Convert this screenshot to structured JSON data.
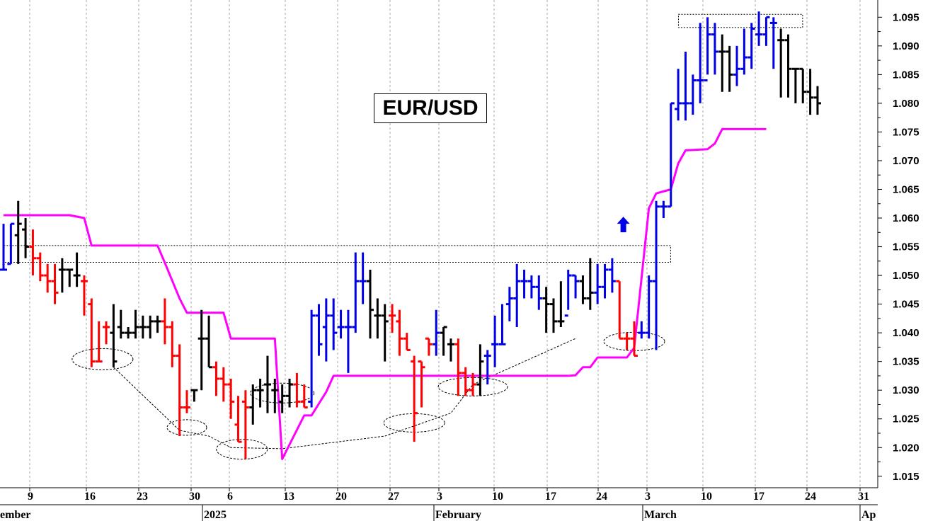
{
  "chart_data": {
    "type": "bar",
    "subtype": "ohlc",
    "title": "EUR/USD",
    "ylim": [
      1.013,
      1.098
    ],
    "yticks": [
      "1.095",
      "1.090",
      "1.085",
      "1.080",
      "1.075",
      "1.070",
      "1.065",
      "1.060",
      "1.055",
      "1.050",
      "1.045",
      "1.040",
      "1.035",
      "1.030",
      "1.025",
      "1.020",
      "1.015"
    ],
    "y_axis_side": "right",
    "grid": "vertical dotted",
    "x_day_labels": [
      "9",
      "16",
      "23",
      "30",
      "6",
      "13",
      "20",
      "27",
      "3",
      "10",
      "17",
      "24",
      "3",
      "10",
      "17",
      "24",
      "31"
    ],
    "x_month_labels": [
      "ember",
      "2025",
      "February",
      "March",
      "Ap"
    ],
    "colors": {
      "up": "#0000e6",
      "down": "#ff0000",
      "neutral": "#000000",
      "trend_line": "#ff00ff",
      "annotation": "#000000"
    },
    "series": [
      {
        "kind": "ohlc",
        "fields": [
          "open",
          "high",
          "low",
          "close",
          "color"
        ],
        "bars": [
          [
            1.051,
            1.059,
            1.051,
            1.051,
            "up"
          ],
          [
            1.052,
            1.059,
            1.052,
            1.059,
            "up"
          ],
          [
            1.057,
            1.063,
            1.052,
            1.059,
            "neutral"
          ],
          [
            1.058,
            1.06,
            1.053,
            1.055,
            "neutral"
          ],
          [
            1.055,
            1.058,
            1.05,
            1.053,
            "down"
          ],
          [
            1.053,
            1.054,
            1.049,
            1.05,
            "down"
          ],
          [
            1.05,
            1.052,
            1.047,
            1.049,
            "down"
          ],
          [
            1.049,
            1.052,
            1.045,
            1.047,
            "down"
          ],
          [
            1.051,
            1.053,
            1.047,
            1.051,
            "neutral"
          ],
          [
            1.051,
            1.051,
            1.048,
            1.051,
            "neutral"
          ],
          [
            1.05,
            1.054,
            1.048,
            1.05,
            "neutral"
          ],
          [
            1.049,
            1.05,
            1.043,
            1.049,
            "down"
          ],
          [
            1.045,
            1.046,
            1.034,
            1.035,
            "down"
          ],
          [
            1.035,
            1.042,
            1.035,
            1.035,
            "down"
          ],
          [
            1.041,
            1.042,
            1.038,
            1.041,
            "down"
          ],
          [
            1.04,
            1.045,
            1.034,
            1.035,
            "neutral"
          ],
          [
            1.041,
            1.044,
            1.039,
            1.04,
            "neutral"
          ],
          [
            1.04,
            1.041,
            1.039,
            1.04,
            "neutral"
          ],
          [
            1.04,
            1.044,
            1.039,
            1.041,
            "neutral"
          ],
          [
            1.041,
            1.043,
            1.039,
            1.041,
            "neutral"
          ],
          [
            1.041,
            1.043,
            1.039,
            1.042,
            "neutral"
          ],
          [
            1.042,
            1.043,
            1.04,
            1.042,
            "neutral"
          ],
          [
            1.042,
            1.046,
            1.038,
            1.041,
            "down"
          ],
          [
            1.041,
            1.042,
            1.034,
            1.036,
            "down"
          ],
          [
            1.036,
            1.038,
            1.022,
            1.027,
            "down"
          ],
          [
            1.027,
            1.03,
            1.026,
            1.027,
            "down"
          ],
          [
            1.03,
            1.03,
            1.028,
            1.03,
            "neutral"
          ],
          [
            1.039,
            1.044,
            1.03,
            1.039,
            "neutral"
          ],
          [
            1.039,
            1.043,
            1.034,
            1.034,
            "neutral"
          ],
          [
            1.034,
            1.035,
            1.029,
            1.032,
            "down"
          ],
          [
            1.032,
            1.034,
            1.028,
            1.031,
            "down"
          ],
          [
            1.031,
            1.032,
            1.025,
            1.028,
            "down"
          ],
          [
            1.024,
            1.029,
            1.021,
            1.021,
            "down"
          ],
          [
            1.028,
            1.03,
            1.018,
            1.027,
            "down"
          ],
          [
            1.027,
            1.031,
            1.024,
            1.03,
            "neutral"
          ],
          [
            1.03,
            1.032,
            1.027,
            1.03,
            "neutral"
          ],
          [
            1.031,
            1.036,
            1.026,
            1.031,
            "neutral"
          ],
          [
            1.03,
            1.032,
            1.026,
            1.03,
            "neutral"
          ],
          [
            1.028,
            1.031,
            1.026,
            1.029,
            "neutral"
          ],
          [
            1.029,
            1.032,
            1.027,
            1.031,
            "neutral"
          ],
          [
            1.031,
            1.033,
            1.027,
            1.028,
            "down"
          ],
          [
            1.028,
            1.031,
            1.027,
            1.027,
            "down"
          ],
          [
            1.028,
            1.044,
            1.027,
            1.043,
            "up"
          ],
          [
            1.043,
            1.045,
            1.036,
            1.038,
            "up"
          ],
          [
            1.041,
            1.046,
            1.035,
            1.043,
            "up"
          ],
          [
            1.043,
            1.046,
            1.037,
            1.04,
            "up"
          ],
          [
            1.041,
            1.044,
            1.039,
            1.041,
            "up"
          ],
          [
            1.041,
            1.044,
            1.033,
            1.041,
            "up"
          ],
          [
            1.041,
            1.054,
            1.04,
            1.049,
            "up"
          ],
          [
            1.049,
            1.054,
            1.045,
            1.049,
            "up"
          ],
          [
            1.049,
            1.051,
            1.039,
            1.044,
            "neutral"
          ],
          [
            1.043,
            1.046,
            1.039,
            1.043,
            "neutral"
          ],
          [
            1.043,
            1.045,
            1.035,
            1.042,
            "neutral"
          ],
          [
            1.043,
            1.045,
            1.04,
            1.043,
            "down"
          ],
          [
            1.042,
            1.044,
            1.036,
            1.039,
            "down"
          ],
          [
            1.039,
            1.04,
            1.037,
            1.037,
            "down"
          ],
          [
            1.035,
            1.036,
            1.021,
            1.026,
            "down"
          ],
          [
            1.035,
            1.035,
            1.027,
            1.034,
            "down"
          ],
          [
            1.039,
            1.039,
            1.036,
            1.038,
            "down"
          ],
          [
            1.038,
            1.044,
            1.036,
            1.04,
            "up"
          ],
          [
            1.04,
            1.041,
            1.036,
            1.041,
            "neutral"
          ],
          [
            1.038,
            1.039,
            1.035,
            1.038,
            "neutral"
          ],
          [
            1.038,
            1.039,
            1.029,
            1.033,
            "down"
          ],
          [
            1.033,
            1.034,
            1.029,
            1.03,
            "down"
          ],
          [
            1.03,
            1.033,
            1.029,
            1.031,
            "down"
          ],
          [
            1.031,
            1.038,
            1.029,
            1.035,
            "neutral"
          ],
          [
            1.036,
            1.037,
            1.031,
            1.036,
            "up"
          ],
          [
            1.038,
            1.043,
            1.034,
            1.038,
            "up"
          ],
          [
            1.038,
            1.045,
            1.038,
            1.038,
            "up"
          ],
          [
            1.045,
            1.048,
            1.042,
            1.046,
            "up"
          ],
          [
            1.046,
            1.052,
            1.041,
            1.049,
            "up"
          ],
          [
            1.049,
            1.051,
            1.046,
            1.049,
            "up"
          ],
          [
            1.049,
            1.05,
            1.046,
            1.048,
            "up"
          ],
          [
            1.048,
            1.05,
            1.044,
            1.046,
            "up"
          ],
          [
            1.046,
            1.048,
            1.04,
            1.045,
            "neutral"
          ],
          [
            1.045,
            1.046,
            1.04,
            1.042,
            "neutral"
          ],
          [
            1.042,
            1.049,
            1.041,
            1.042,
            "neutral"
          ],
          [
            1.043,
            1.051,
            1.044,
            1.05,
            "up"
          ],
          [
            1.05,
            1.05,
            1.046,
            1.049,
            "up"
          ],
          [
            1.049,
            1.05,
            1.045,
            1.046,
            "neutral"
          ],
          [
            1.046,
            1.053,
            1.044,
            1.047,
            "neutral"
          ],
          [
            1.047,
            1.052,
            1.045,
            1.048,
            "up"
          ],
          [
            1.048,
            1.052,
            1.046,
            1.051,
            "up"
          ],
          [
            1.051,
            1.053,
            1.047,
            1.049,
            "up"
          ],
          [
            1.049,
            1.049,
            1.039,
            1.039,
            "down"
          ],
          [
            1.039,
            1.04,
            1.037,
            1.039,
            "down"
          ],
          [
            1.039,
            1.042,
            1.036,
            1.036,
            "down"
          ],
          [
            1.04,
            1.042,
            1.039,
            1.04,
            "up"
          ],
          [
            1.04,
            1.05,
            1.039,
            1.049,
            "up"
          ],
          [
            1.049,
            1.063,
            1.037,
            1.062,
            "up"
          ],
          [
            1.062,
            1.063,
            1.06,
            1.062,
            "up"
          ],
          [
            1.062,
            1.08,
            1.062,
            1.08,
            "up"
          ],
          [
            1.079,
            1.086,
            1.077,
            1.08,
            "up"
          ],
          [
            1.08,
            1.089,
            1.077,
            1.08,
            "up"
          ],
          [
            1.08,
            1.085,
            1.078,
            1.084,
            "up"
          ],
          [
            1.084,
            1.094,
            1.08,
            1.084,
            "up"
          ],
          [
            1.084,
            1.095,
            1.085,
            1.092,
            "up"
          ],
          [
            1.092,
            1.094,
            1.085,
            1.089,
            "up"
          ],
          [
            1.089,
            1.092,
            1.082,
            1.089,
            "neutral"
          ],
          [
            1.089,
            1.09,
            1.082,
            1.085,
            "neutral"
          ],
          [
            1.085,
            1.09,
            1.083,
            1.086,
            "up"
          ],
          [
            1.086,
            1.093,
            1.085,
            1.088,
            "up"
          ],
          [
            1.088,
            1.094,
            1.086,
            1.093,
            "up"
          ],
          [
            1.092,
            1.096,
            1.09,
            1.092,
            "up"
          ],
          [
            1.092,
            1.095,
            1.09,
            1.095,
            "up"
          ],
          [
            1.094,
            1.095,
            1.086,
            1.094,
            "up"
          ],
          [
            1.091,
            1.093,
            1.081,
            1.091,
            "neutral"
          ],
          [
            1.091,
            1.092,
            1.081,
            1.086,
            "neutral"
          ],
          [
            1.086,
            1.086,
            1.08,
            1.086,
            "neutral"
          ],
          [
            1.086,
            1.086,
            1.08,
            1.082,
            "neutral"
          ],
          [
            1.082,
            1.086,
            1.078,
            1.081,
            "neutral"
          ],
          [
            1.081,
            1.083,
            1.078,
            1.08,
            "neutral"
          ]
        ]
      },
      {
        "kind": "line",
        "color": "#ff00ff",
        "points": [
          [
            0,
            1.0605
          ],
          [
            9,
            1.0605
          ],
          [
            11,
            1.06
          ],
          [
            12,
            1.0552
          ],
          [
            20,
            1.0552
          ],
          [
            21,
            1.0552
          ],
          [
            22,
            1.0522
          ],
          [
            24,
            1.046
          ],
          [
            25,
            1.0435
          ],
          [
            30,
            1.0435
          ],
          [
            31,
            1.039
          ],
          [
            37,
            1.039
          ],
          [
            38,
            1.018
          ],
          [
            41,
            1.0256
          ],
          [
            42,
            1.0256
          ],
          [
            44,
            1.0297
          ],
          [
            45,
            1.0325
          ],
          [
            66,
            1.0325
          ],
          [
            67,
            1.0325
          ],
          [
            68,
            1.0325
          ],
          [
            69,
            1.0325
          ],
          [
            76,
            1.0325
          ],
          [
            77,
            1.0325
          ],
          [
            78,
            1.0326
          ],
          [
            79,
            1.034
          ],
          [
            80,
            1.034
          ],
          [
            81,
            1.0357
          ],
          [
            85,
            1.0357
          ],
          [
            86,
            1.0374
          ],
          [
            88,
            1.0617
          ],
          [
            89,
            1.0643
          ],
          [
            91,
            1.065
          ],
          [
            92,
            1.0695
          ],
          [
            93,
            1.0718
          ],
          [
            96,
            1.072
          ],
          [
            97,
            1.073
          ],
          [
            98,
            1.0755
          ],
          [
            104,
            1.0755
          ]
        ]
      }
    ],
    "annotations": [
      {
        "type": "rect_dashed",
        "y1": 1.0552,
        "y2": 1.0523,
        "from_bar": 1,
        "to_bar": 90
      },
      {
        "type": "rect_dashed",
        "y1": 1.0955,
        "y2": 1.0932,
        "from_bar": 93,
        "to_bar": 108
      },
      {
        "type": "ellipse_dashed",
        "bar": 13.5,
        "y": 1.0354,
        "rx": 43,
        "ry": 15
      },
      {
        "type": "ellipse_dashed",
        "bar": 25,
        "y": 1.0235,
        "rx": 28,
        "ry": 11
      },
      {
        "type": "ellipse_dashed",
        "bar": 32.5,
        "y": 1.0197,
        "rx": 36,
        "ry": 14
      },
      {
        "type": "ellipse_dashed",
        "bar": 38,
        "y": 1.0295,
        "rx": 45,
        "ry": 14
      },
      {
        "type": "ellipse_dashed",
        "bar": 56,
        "y": 1.0243,
        "rx": 43,
        "ry": 13
      },
      {
        "type": "ellipse_dashed",
        "bar": 64,
        "y": 1.0306,
        "rx": 49,
        "ry": 13
      },
      {
        "type": "ellipse_dashed",
        "bar": 86,
        "y": 1.0385,
        "rx": 43,
        "ry": 13
      },
      {
        "type": "arrow_up",
        "bar": 85,
        "y": 1.059,
        "color": "#0000e6"
      },
      {
        "type": "line_dashed",
        "points": [
          [
            15,
            1.034
          ],
          [
            24,
            1.023
          ],
          [
            28,
            1.022
          ],
          [
            31,
            1.02
          ],
          [
            38,
            1.0198
          ],
          [
            52,
            1.022
          ],
          [
            61,
            1.026
          ],
          [
            64,
            1.031
          ],
          [
            78,
            1.039
          ]
        ]
      }
    ]
  }
}
